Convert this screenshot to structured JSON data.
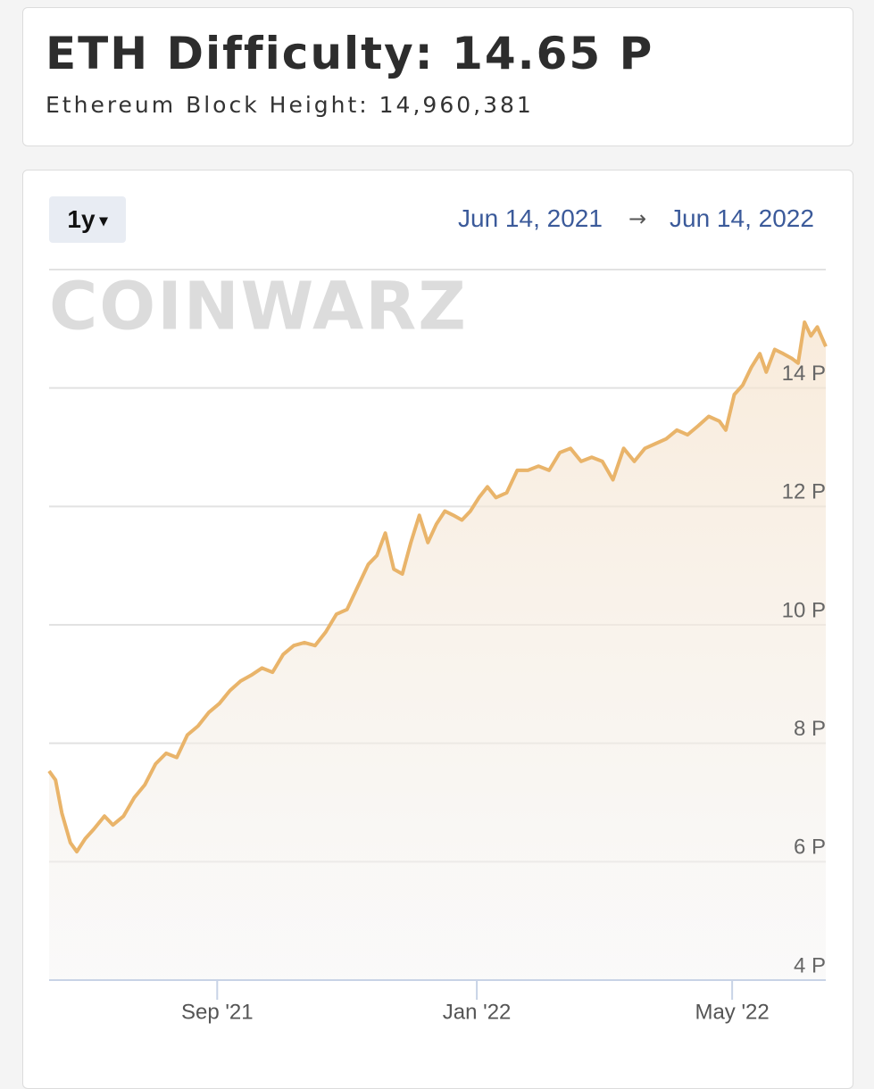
{
  "header": {
    "title": "ETH Difficulty: 14.65 P",
    "subtitle": "Ethereum Block Height: 14,960,381"
  },
  "controls": {
    "range": "1y",
    "start": "Jun 14, 2021",
    "separator": "→",
    "end": "Jun 14, 2022"
  },
  "watermark": "CoinWarz",
  "chart_data": {
    "type": "line",
    "color": "#e9b46a",
    "grid": true,
    "x": [
      0,
      3,
      6,
      10,
      13,
      17,
      21,
      26,
      30,
      35,
      40,
      45,
      50,
      55,
      60,
      65,
      70,
      75,
      80,
      85,
      90,
      95,
      100,
      105,
      110,
      115,
      120,
      125,
      130,
      135,
      140,
      145,
      150,
      154,
      158,
      162,
      166,
      170,
      174,
      178,
      182,
      186,
      190,
      194,
      198,
      202,
      206,
      210,
      215,
      220,
      225,
      230,
      235,
      240,
      245,
      250,
      255,
      260,
      265,
      270,
      275,
      280,
      285,
      290,
      295,
      300,
      305,
      310,
      315,
      318,
      322,
      326,
      330,
      334,
      337,
      341,
      345,
      349,
      352,
      355,
      358,
      361,
      365
    ],
    "values": [
      7.53,
      7.38,
      6.82,
      6.32,
      6.17,
      6.39,
      6.55,
      6.77,
      6.62,
      6.77,
      7.08,
      7.3,
      7.65,
      7.83,
      7.76,
      8.14,
      8.29,
      8.52,
      8.67,
      8.89,
      9.05,
      9.15,
      9.27,
      9.2,
      9.5,
      9.65,
      9.7,
      9.65,
      9.88,
      10.18,
      10.26,
      10.64,
      11.02,
      11.17,
      11.55,
      10.94,
      10.86,
      11.39,
      11.85,
      11.39,
      11.7,
      11.92,
      11.85,
      11.77,
      11.92,
      12.15,
      12.33,
      12.15,
      12.23,
      12.61,
      12.61,
      12.68,
      12.61,
      12.91,
      12.98,
      12.76,
      12.83,
      12.76,
      12.45,
      12.98,
      12.76,
      12.98,
      13.06,
      13.14,
      13.29,
      13.21,
      13.36,
      13.52,
      13.44,
      13.29,
      13.89,
      14.05,
      14.35,
      14.58,
      14.27,
      14.65,
      14.58,
      14.5,
      14.42,
      15.11,
      14.88,
      15.03,
      14.7
    ],
    "xlim": [
      0,
      365
    ],
    "xticks": [
      {
        "value": 79,
        "label": "Sep '21"
      },
      {
        "value": 201,
        "label": "Jan '22"
      },
      {
        "value": 321,
        "label": "May '22"
      }
    ],
    "ylim": [
      4,
      16
    ],
    "yticks": [
      {
        "value": 4,
        "label": "4 P"
      },
      {
        "value": 6,
        "label": "6 P"
      },
      {
        "value": 8,
        "label": "8 P"
      },
      {
        "value": 10,
        "label": "10 P"
      },
      {
        "value": 12,
        "label": "12 P"
      },
      {
        "value": 14,
        "label": "14 P"
      }
    ]
  }
}
